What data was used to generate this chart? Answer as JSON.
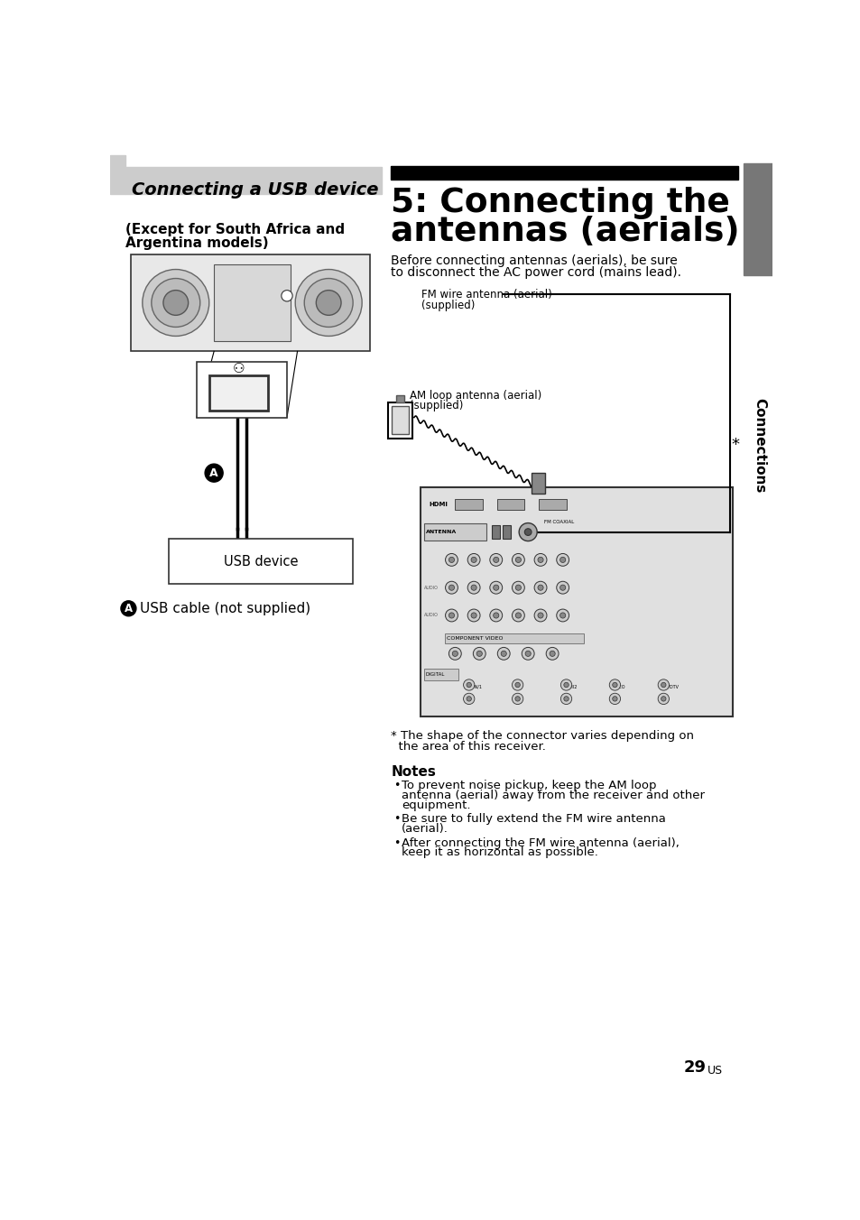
{
  "page_bg": "#ffffff",
  "left_section_title": "Connecting a USB device",
  "left_section_title_bg": "#cccccc",
  "left_subtitle_line1": "(Except for South Africa and",
  "left_subtitle_line2": "Argentina models)",
  "usb_label": "USB device",
  "cable_label_text": "USB cable (not supplied)",
  "right_title_bar_color": "#000000",
  "right_title_line1": "5: Connecting the",
  "right_title_line2": "antennas (aerials)",
  "right_subtitle_line1": "Before connecting antennas (aerials), be sure",
  "right_subtitle_line2": "to disconnect the AC power cord (mains lead).",
  "fm_label_line1": "FM wire antenna (aerial)",
  "fm_label_line2": "(supplied)",
  "am_label_line1": "AM loop antenna (aerial)",
  "am_label_line2": "(supplied)",
  "asterisk_note_line1": "* The shape of the connector varies depending on",
  "asterisk_note_line2": "  the area of this receiver.",
  "notes_title": "Notes",
  "notes": [
    "To prevent noise pickup, keep the AM loop\nantenna (aerial) away from the receiver and other\nequipment.",
    "Be sure to fully extend the FM wire antenna\n(aerial).",
    "After connecting the FM wire antenna (aerial),\nkeep it as horizontal as possible."
  ],
  "page_number": "29",
  "page_number_suffix": "US",
  "sidebar_color": "#666666",
  "sidebar_text": "Connections"
}
